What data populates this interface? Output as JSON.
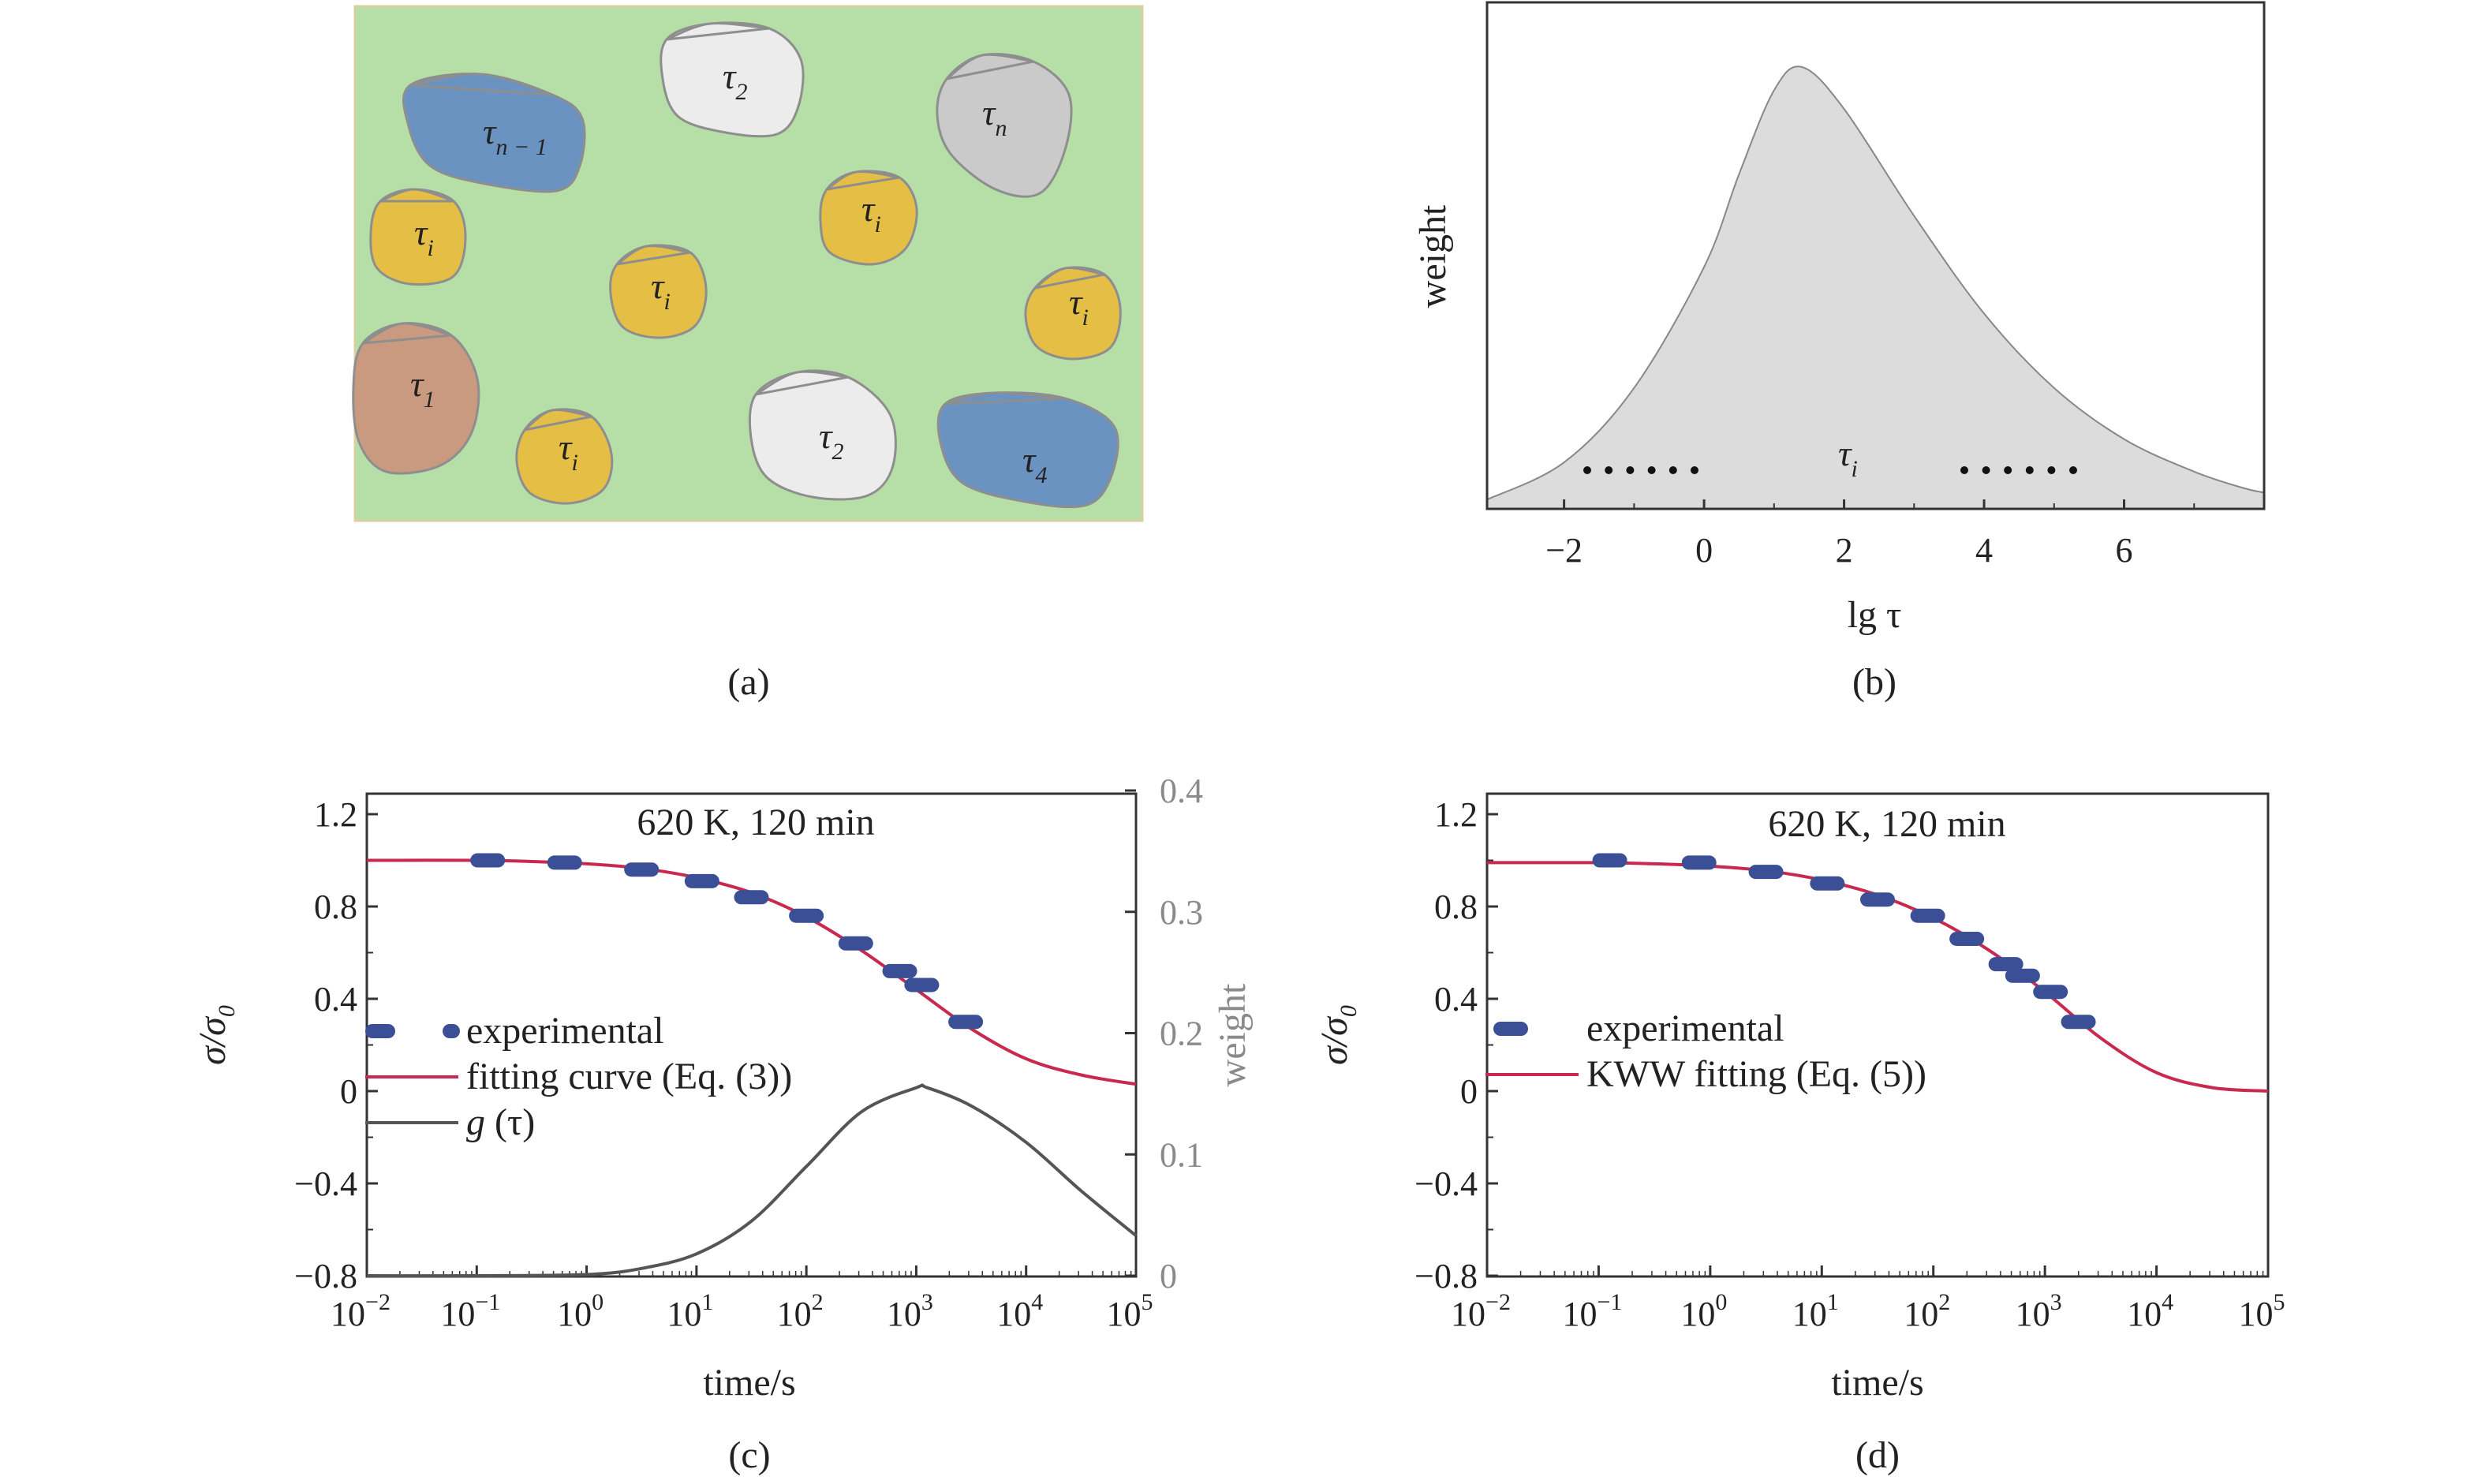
{
  "panel_a": {
    "caption": "(a)",
    "background": "#b6dfa8",
    "grains": [
      {
        "sym": "τ",
        "sub": "n − 1",
        "color": "#6b93c2"
      },
      {
        "sym": "τ",
        "sub": "2",
        "color": "#ececec"
      },
      {
        "sym": "τ",
        "sub": "n",
        "color": "#cacaca"
      },
      {
        "sym": "τ",
        "sub": "i",
        "color": "#e5bf45"
      },
      {
        "sym": "τ",
        "sub": "i",
        "color": "#e5bf45"
      },
      {
        "sym": "τ",
        "sub": "i",
        "color": "#e5bf45"
      },
      {
        "sym": "τ",
        "sub": "i",
        "color": "#e5bf45"
      },
      {
        "sym": "τ",
        "sub": "1",
        "color": "#c99a7f"
      },
      {
        "sym": "τ",
        "sub": "i",
        "color": "#e5bf45"
      },
      {
        "sym": "τ",
        "sub": "2",
        "color": "#ececec"
      },
      {
        "sym": "τ",
        "sub": "4",
        "color": "#6b93c2"
      }
    ]
  },
  "chart_data": [
    {
      "panel": "b",
      "type": "area",
      "caption": "(b)",
      "xlabel": "lg τ",
      "ylabel": "weight",
      "xticks": [
        "−2",
        "0",
        "2",
        "4",
        "6"
      ],
      "xlim": [
        -3.1,
        8.0
      ],
      "annotation": {
        "sym": "τ",
        "sub": "i"
      },
      "x": [
        -3.1,
        -2,
        -1,
        0,
        0.5,
        1,
        1.4,
        2,
        3,
        4,
        5,
        6,
        7,
        7.7,
        8.0
      ],
      "y": [
        0.02,
        0.1,
        0.26,
        0.52,
        0.72,
        0.9,
        0.95,
        0.86,
        0.63,
        0.42,
        0.26,
        0.15,
        0.08,
        0.045,
        0.035
      ],
      "fill": "#dcdcdc"
    },
    {
      "panel": "c",
      "type": "line",
      "caption": "(c)",
      "title": "620 K, 120 min",
      "xlabel": "time/s",
      "ylabel": "σ/σ",
      "ylabel_sub": "0",
      "y2label": "weight",
      "xscale": "log",
      "xlim": [
        -2,
        5
      ],
      "ylim": [
        -0.8,
        1.2
      ],
      "y2lim": [
        0,
        0.4
      ],
      "xtick_base": "10",
      "xtick_exps": [
        "−2",
        "−1",
        "0",
        "1",
        "2",
        "3",
        "4",
        "5"
      ],
      "yticks": [
        "1.2",
        "0.8",
        "0.4",
        "0",
        "−0.4",
        "−0.8"
      ],
      "y2ticks": [
        "0.4",
        "0.3",
        "0.2",
        "0.1",
        "0"
      ],
      "legend": [
        "experimental",
        "fitting curve (Eq. (3))",
        "g (τ)"
      ],
      "legend_position": "center-left",
      "series": [
        {
          "name": "experimental",
          "style": "markers",
          "color": "#3a4f96",
          "x": [
            -0.9,
            -0.2,
            0.5,
            1.05,
            1.5,
            2.0,
            2.45,
            2.85,
            3.05,
            3.45
          ],
          "y": [
            1.0,
            0.99,
            0.96,
            0.91,
            0.84,
            0.76,
            0.64,
            0.52,
            0.46,
            0.3
          ]
        },
        {
          "name": "fitting curve (Eq. (3))",
          "style": "line",
          "color": "#c8294f",
          "x": [
            -2,
            -1,
            -0.5,
            0,
            0.5,
            1,
            1.5,
            2,
            2.5,
            3,
            3.5,
            4,
            4.5,
            5
          ],
          "y": [
            1.0,
            1.0,
            0.995,
            0.985,
            0.965,
            0.925,
            0.86,
            0.755,
            0.61,
            0.44,
            0.27,
            0.14,
            0.07,
            0.03
          ]
        },
        {
          "name": "g (τ)",
          "style": "line",
          "color": "#555555",
          "axis": "y2",
          "x": [
            -2,
            -1,
            0,
            0.5,
            1,
            1.5,
            2,
            2.5,
            3,
            3.1,
            3.5,
            4,
            4.5,
            5
          ],
          "y": [
            0,
            0,
            0.001,
            0.006,
            0.018,
            0.045,
            0.09,
            0.135,
            0.155,
            0.155,
            0.14,
            0.11,
            0.07,
            0.033
          ]
        }
      ]
    },
    {
      "panel": "d",
      "type": "line",
      "caption": "(d)",
      "title": "620 K, 120 min",
      "xlabel": "time/s",
      "ylabel": "σ/σ",
      "ylabel_sub": "0",
      "xscale": "log",
      "xlim": [
        -2,
        5
      ],
      "ylim": [
        -0.8,
        1.2
      ],
      "xtick_base": "10",
      "xtick_exps": [
        "−2",
        "−1",
        "0",
        "1",
        "2",
        "3",
        "4",
        "5"
      ],
      "yticks": [
        "1.2",
        "0.8",
        "0.4",
        "0",
        "−0.4",
        "−0.8"
      ],
      "legend": [
        "experimental",
        "KWW fitting (Eq. (5))"
      ],
      "legend_position": "center-left",
      "series": [
        {
          "name": "experimental",
          "style": "markers",
          "color": "#3a4f96",
          "x": [
            -0.9,
            -0.1,
            0.5,
            1.05,
            1.5,
            1.95,
            2.3,
            2.65,
            2.8,
            3.05,
            3.3
          ],
          "y": [
            1.0,
            0.99,
            0.95,
            0.9,
            0.83,
            0.76,
            0.66,
            0.55,
            0.5,
            0.43,
            0.3
          ]
        },
        {
          "name": "KWW fitting (Eq. (5))",
          "style": "line",
          "color": "#c8294f",
          "x": [
            -2,
            -1,
            -0.5,
            0,
            0.5,
            1,
            1.5,
            2,
            2.5,
            3,
            3.5,
            4,
            4.5,
            5
          ],
          "y": [
            0.99,
            0.99,
            0.985,
            0.975,
            0.955,
            0.915,
            0.85,
            0.75,
            0.61,
            0.43,
            0.23,
            0.08,
            0.015,
            0.0
          ]
        }
      ]
    }
  ]
}
